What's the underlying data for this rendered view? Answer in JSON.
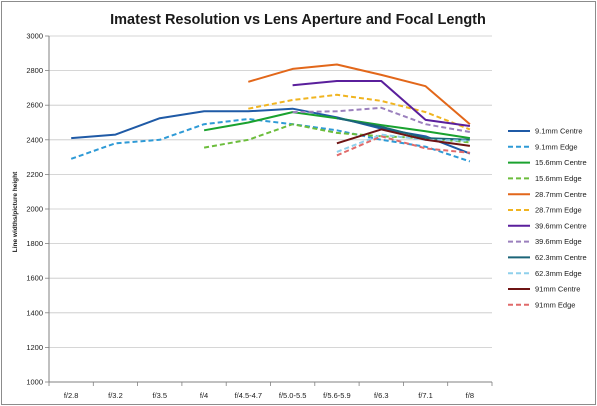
{
  "chart_data": {
    "type": "line",
    "title": "Imatest Resolution vs Lens Aperture and Focal Length",
    "xlabel": "",
    "ylabel": "Line widths/picture height",
    "categories": [
      "f/2.8",
      "f/3.2",
      "f/3.5",
      "f/4",
      "f/4.5-4.7",
      "f/5.0-5.5",
      "f/5.6-5.9",
      "f/6.3",
      "f/7.1",
      "f/8"
    ],
    "ylim": [
      1000,
      3000
    ],
    "yticks": [
      1000,
      1200,
      1400,
      1600,
      1800,
      2000,
      2200,
      2400,
      2600,
      2800,
      3000
    ],
    "grid": "horizontal",
    "legend_position": "right",
    "series": [
      {
        "name": "9.1mm Centre",
        "color": "#1f5aa6",
        "dash": "solid",
        "values": [
          2410,
          2430,
          2525,
          2565,
          2565,
          2580,
          2530,
          2465,
          2420,
          2320
        ]
      },
      {
        "name": "9.1mm Edge",
        "color": "#2e9ad6",
        "dash": "dashed",
        "values": [
          2290,
          2380,
          2400,
          2490,
          2520,
          2490,
          2455,
          2400,
          2360,
          2275
        ]
      },
      {
        "name": "15.6mm Centre",
        "color": "#1aa22f",
        "dash": "solid",
        "values": [
          null,
          null,
          null,
          2455,
          2500,
          2560,
          2525,
          2485,
          2450,
          2410
        ]
      },
      {
        "name": "15.6mm Edge",
        "color": "#6cbd3c",
        "dash": "dashed",
        "values": [
          null,
          null,
          null,
          2355,
          2400,
          2490,
          2440,
          2420,
          2410,
          2385
        ]
      },
      {
        "name": "28.7mm Centre",
        "color": "#e2671a",
        "dash": "solid",
        "values": [
          null,
          null,
          null,
          null,
          2735,
          2810,
          2835,
          2775,
          2710,
          2490
        ]
      },
      {
        "name": "28.7mm Edge",
        "color": "#f0b420",
        "dash": "dashed",
        "values": [
          null,
          null,
          null,
          null,
          2580,
          2630,
          2660,
          2625,
          2560,
          2460
        ]
      },
      {
        "name": "39.6mm Centre",
        "color": "#5a1f9c",
        "dash": "solid",
        "values": [
          null,
          null,
          null,
          null,
          null,
          2715,
          2740,
          2740,
          2515,
          2480
        ]
      },
      {
        "name": "39.6mm Edge",
        "color": "#9b80bd",
        "dash": "dashed",
        "values": [
          null,
          null,
          null,
          null,
          null,
          2560,
          2565,
          2585,
          2490,
          2445
        ]
      },
      {
        "name": "62.3mm Centre",
        "color": "#1b6478",
        "dash": "solid",
        "values": [
          null,
          null,
          null,
          null,
          null,
          null,
          2525,
          2475,
          2410,
          2400
        ]
      },
      {
        "name": "62.3mm Edge",
        "color": "#8fd0ec",
        "dash": "dashed",
        "values": [
          null,
          null,
          null,
          null,
          null,
          null,
          2330,
          2430,
          2400,
          2395
        ]
      },
      {
        "name": "91mm Centre",
        "color": "#6e1414",
        "dash": "solid",
        "values": [
          null,
          null,
          null,
          null,
          null,
          null,
          2380,
          2460,
          2400,
          2365
        ]
      },
      {
        "name": "91mm Edge",
        "color": "#e06a6a",
        "dash": "dashed",
        "values": [
          null,
          null,
          null,
          null,
          null,
          null,
          2310,
          2420,
          2350,
          2325
        ]
      }
    ]
  }
}
